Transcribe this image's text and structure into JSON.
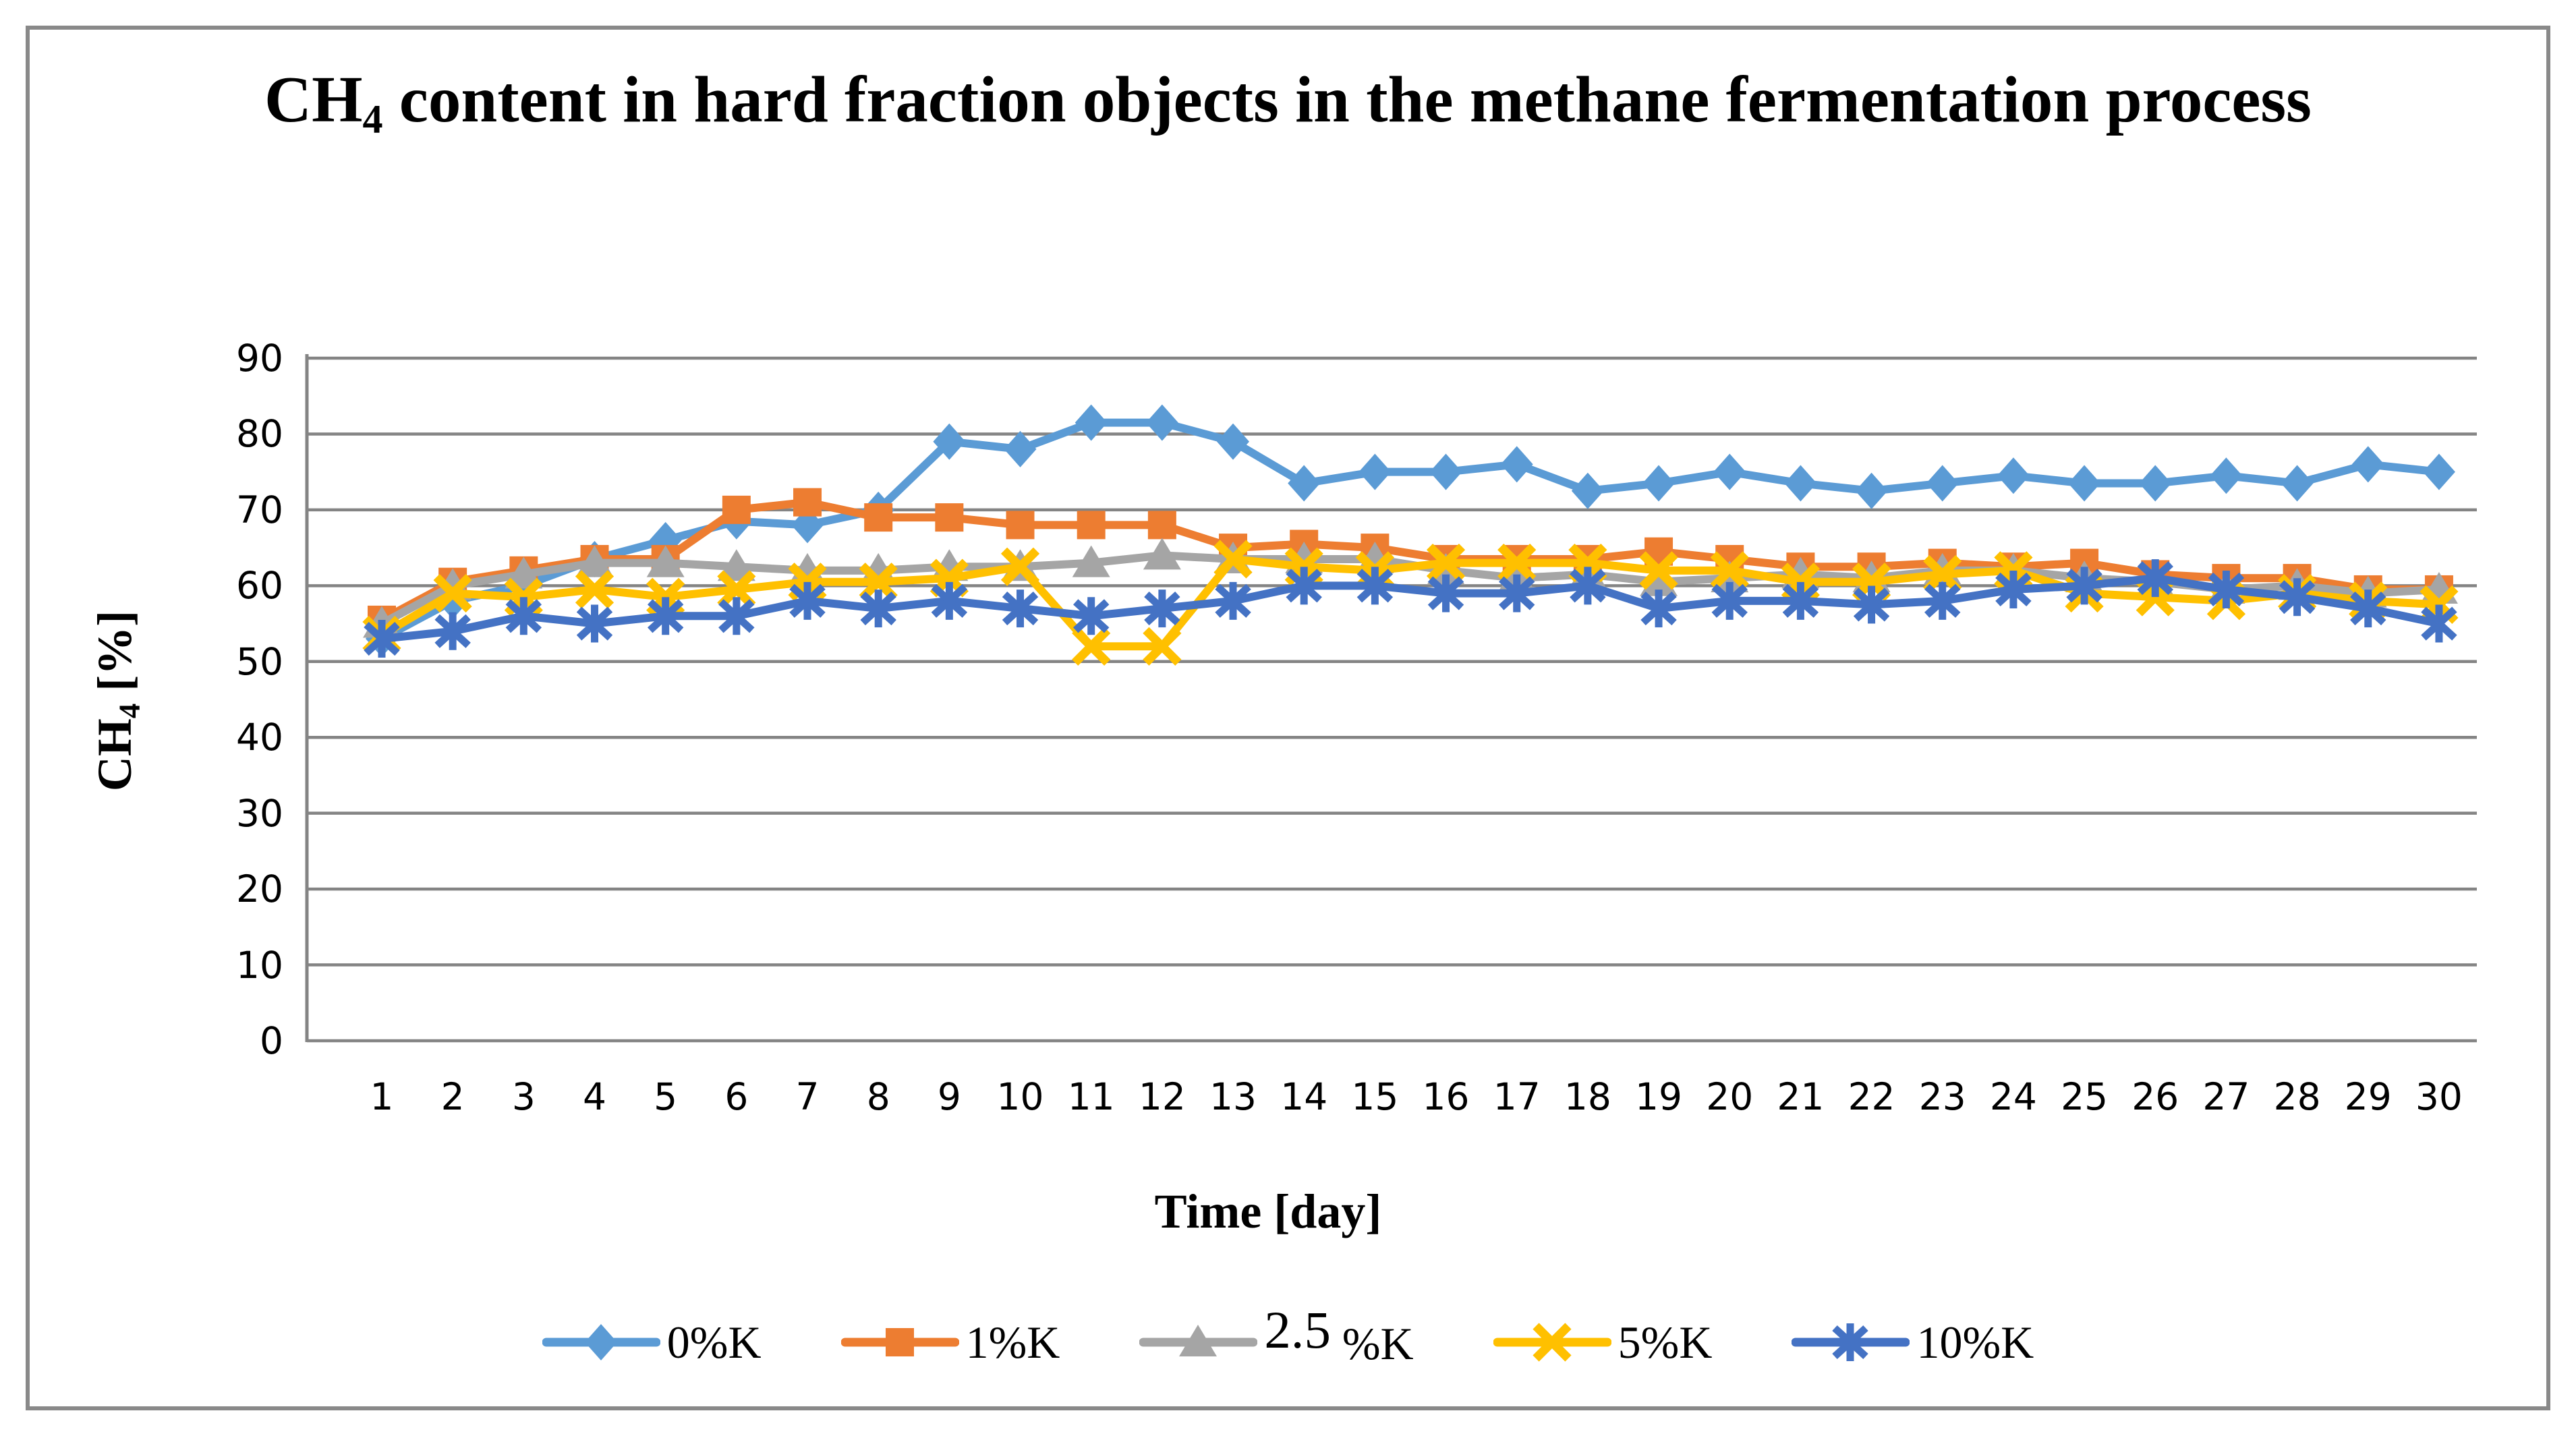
{
  "title_segments": [
    {
      "t": "CH"
    },
    {
      "t": "4",
      "sub": true
    },
    {
      "t": " content in hard fraction objects in the methane fermentation process"
    }
  ],
  "xlabel": "Time [day]",
  "ylabel_segments": [
    {
      "t": "CH"
    },
    {
      "t": "4",
      "sub": true
    },
    {
      "t": " [%]"
    }
  ],
  "chart_data": {
    "type": "line",
    "title": "CH4 content in hard fraction objects in the methane fermentation process",
    "xlabel": "Time [day]",
    "ylabel": "CH4 [%]",
    "x_labels": [
      "1",
      "2",
      "3",
      "4",
      "5",
      "6",
      "7",
      "8",
      "9",
      "10",
      "11",
      "12",
      "13",
      "14",
      "15",
      "16",
      "17",
      "18",
      "19",
      "20",
      "21",
      "22",
      "23",
      "24",
      "25",
      "26",
      "27",
      "28",
      "29",
      "30"
    ],
    "ytick_labels": [
      "90",
      "80",
      "70",
      "60",
      "50",
      "40",
      "30",
      "20",
      "10",
      "0"
    ],
    "ylim": [
      0,
      90
    ],
    "grid": "horizontal",
    "grid_color": "#848484",
    "axis_color": "#848484",
    "legend_position": "bottom",
    "series": [
      {
        "name": "0%K",
        "marker": "diamond",
        "color": "#5B9BD5",
        "legend_segments": [
          {
            "t": "0%K"
          }
        ],
        "values": [
          53,
          58,
          60,
          63.5,
          66,
          68.5,
          68,
          70,
          79,
          78,
          81.5,
          81.5,
          79,
          73.5,
          75,
          75,
          76,
          72.5,
          73.5,
          75,
          73.5,
          72.5,
          73.5,
          74.5,
          73.5,
          73.5,
          74.5,
          73.5,
          76,
          75
        ]
      },
      {
        "name": "1%K",
        "marker": "square",
        "color": "#ED7D31",
        "legend_segments": [
          {
            "t": "1%K"
          }
        ],
        "values": [
          55.5,
          60.5,
          62,
          63.5,
          63.5,
          70,
          71,
          69,
          69,
          68,
          68,
          68,
          65,
          65.5,
          65,
          63.5,
          63.5,
          63.5,
          64.5,
          63.5,
          62.5,
          62.5,
          63,
          62.5,
          63,
          61.5,
          61,
          61,
          59.5,
          59.5
        ]
      },
      {
        "name": "2.5 %K",
        "marker": "triangle",
        "color": "#A5A5A5",
        "legend_segments": [
          {
            "t": "2.5",
            "raised": true
          },
          {
            "t": " %K"
          }
        ],
        "values": [
          55,
          60,
          61.5,
          63,
          63,
          62.5,
          62,
          62,
          62.5,
          62.5,
          63,
          64,
          63.5,
          63.5,
          63.5,
          62,
          61,
          61.5,
          60.5,
          61,
          61.5,
          61,
          62,
          62,
          61,
          60.5,
          59.5,
          60,
          59,
          59.5
        ]
      },
      {
        "name": "5%K",
        "marker": "x",
        "color": "#FFC000",
        "legend_segments": [
          {
            "t": "5%K"
          }
        ],
        "values": [
          53.5,
          59,
          58.5,
          59.5,
          58.5,
          59.5,
          60.5,
          60.5,
          61,
          62.5,
          52,
          52,
          63.5,
          62.5,
          62,
          63,
          63,
          63,
          62,
          62,
          60.5,
          60.5,
          61.5,
          62,
          59,
          58.5,
          58,
          59,
          58,
          57.5
        ]
      },
      {
        "name": "10%K",
        "marker": "asterisk",
        "color": "#4472C4",
        "legend_segments": [
          {
            "t": "10%K"
          }
        ],
        "values": [
          53,
          54,
          56,
          55,
          56,
          56,
          58,
          57,
          58,
          57,
          56,
          57,
          58,
          60,
          60,
          59,
          59,
          60,
          57,
          58,
          58,
          57.5,
          58,
          59.5,
          60,
          61,
          59.5,
          58.5,
          57,
          55
        ]
      }
    ]
  }
}
